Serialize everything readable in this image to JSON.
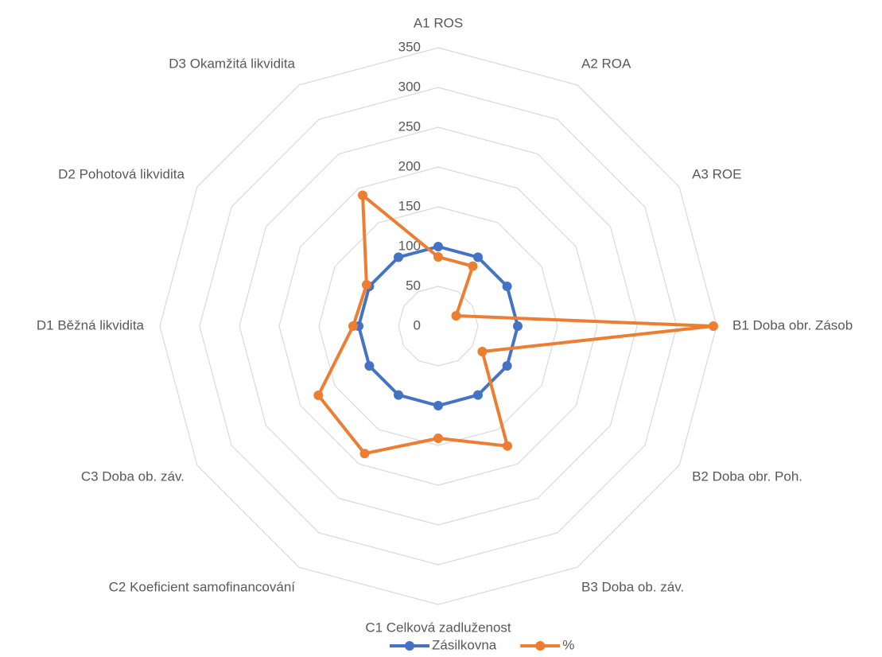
{
  "chart_data": {
    "type": "radar",
    "categories": [
      "A1 ROS",
      "A2 ROA",
      "A3 ROE",
      "B1 Doba obr. Zásob",
      "B2 Doba obr. Poh.",
      "B3 Doba ob. záv.",
      "C1 Celková zadluženost",
      "C2 Koeficient samofinancování",
      "C3 Doba ob. záv.",
      "D1 Běžná likvidita",
      "D2 Pohotová likvidita",
      "D3 Okamžitá likvidita"
    ],
    "series": [
      {
        "name": "Zásilkovna",
        "color": "#4472c4",
        "values": [
          100,
          100,
          100,
          100,
          100,
          100,
          100,
          100,
          100,
          100,
          100,
          100
        ]
      },
      {
        "name": "%",
        "color": "#ed7d31",
        "values": [
          87,
          87,
          26,
          346,
          64,
          174,
          141,
          185,
          174,
          107,
          104,
          190
        ]
      }
    ],
    "ylim": [
      0,
      350
    ],
    "yticks": [
      0,
      50,
      100,
      150,
      200,
      250,
      300,
      350
    ],
    "grid": true,
    "legend": "bottom"
  }
}
